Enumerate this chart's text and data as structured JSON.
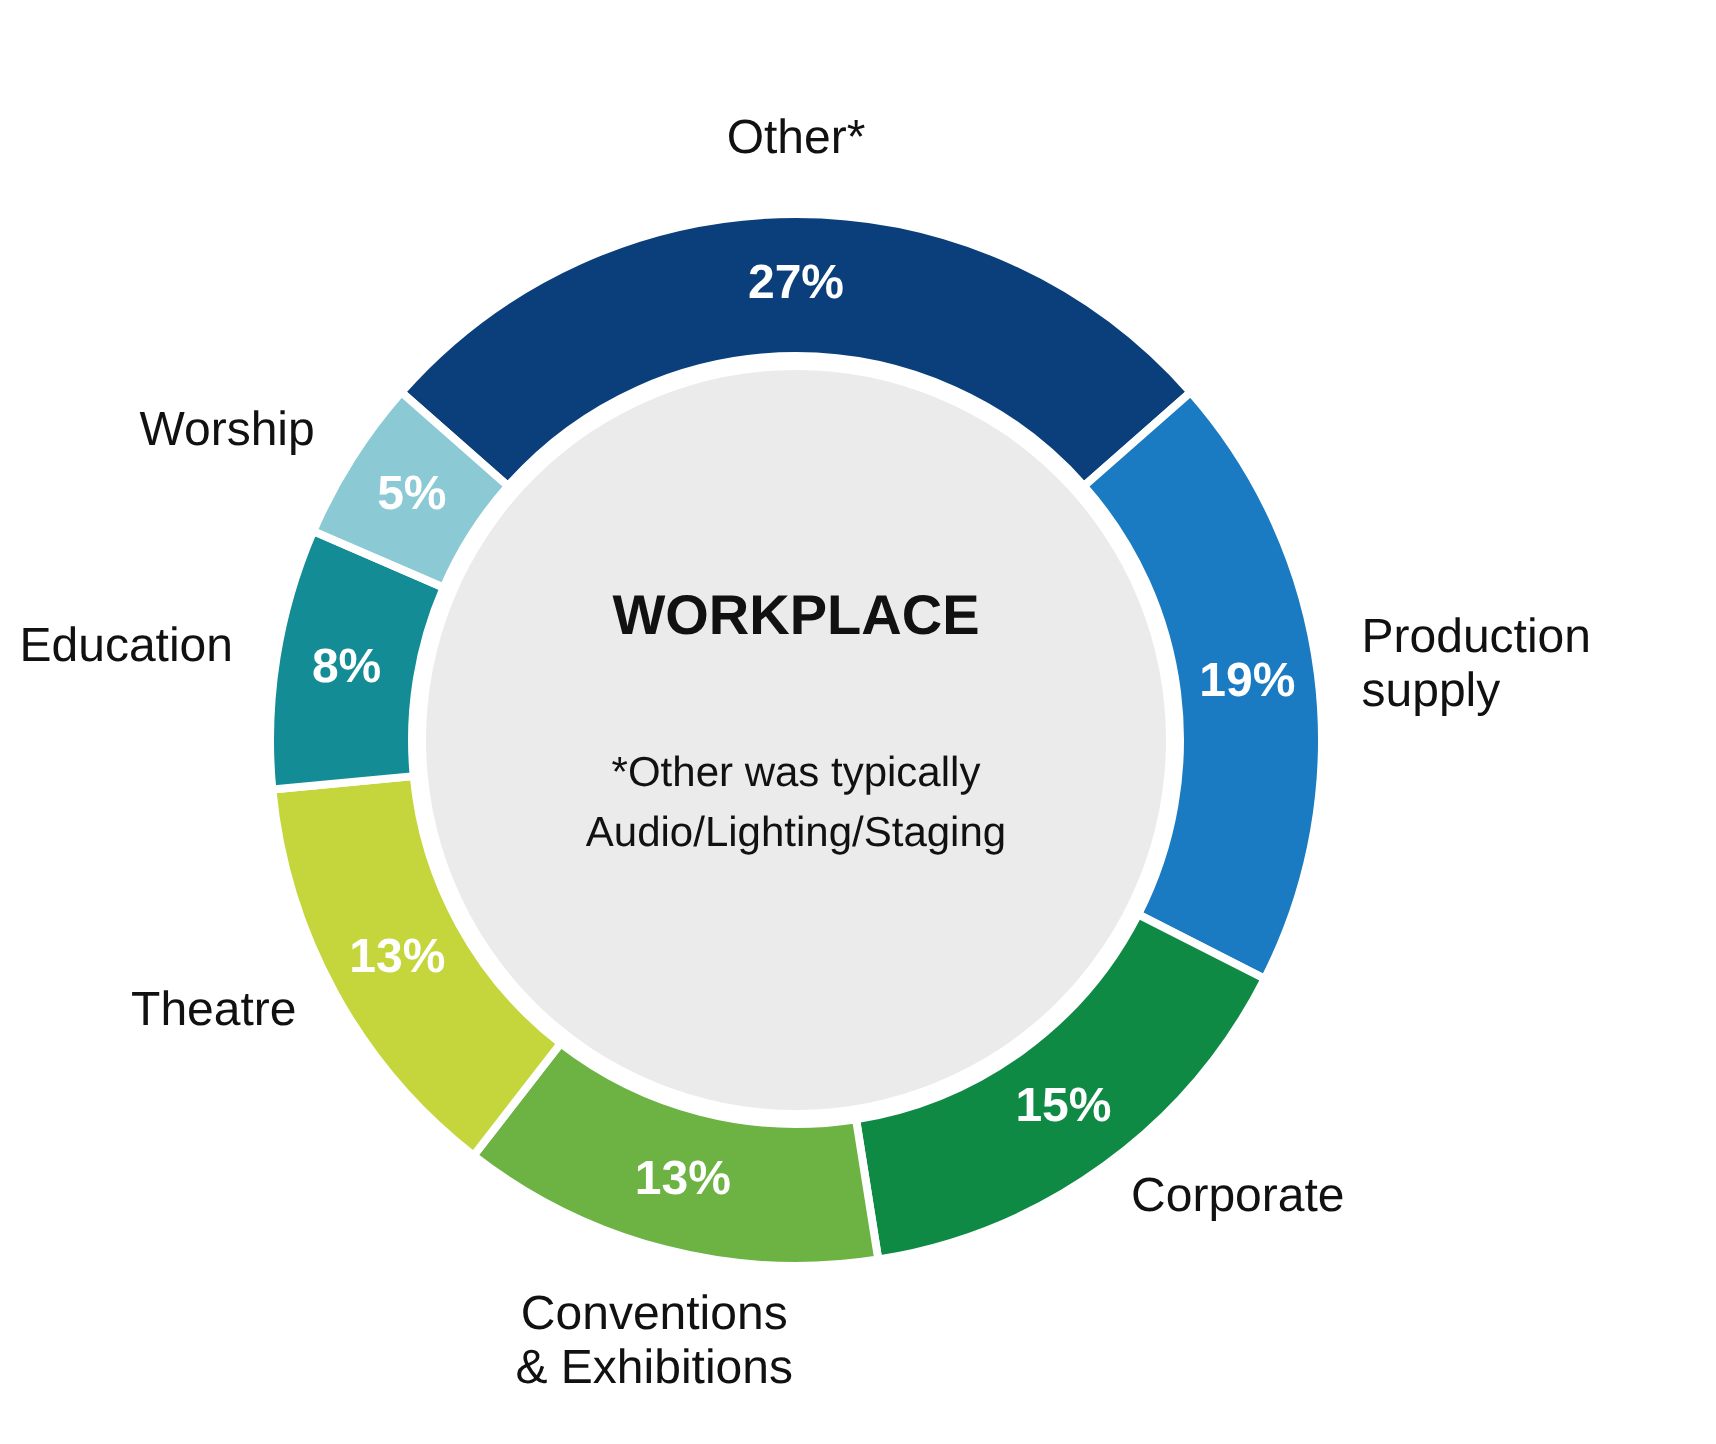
{
  "chart_data": {
    "type": "donut",
    "title": "WORKPLACE",
    "categories": [
      "Other*",
      "Production supply",
      "Corporate",
      "Conventions & Exhibitions",
      "Theatre",
      "Education",
      "Worship"
    ],
    "values": [
      27,
      19,
      15,
      13,
      13,
      8,
      5
    ],
    "value_labels": [
      "27%",
      "19%",
      "15%",
      "13%",
      "13%",
      "8%",
      "5%"
    ],
    "colors": [
      "#0b3f7c",
      "#1a7bc2",
      "#0f8a45",
      "#6cb343",
      "#c5d63c",
      "#138c95",
      "#8bcad4"
    ],
    "annotations": [
      "*Other was typically Audio/Lighting/Staging"
    ]
  }
}
